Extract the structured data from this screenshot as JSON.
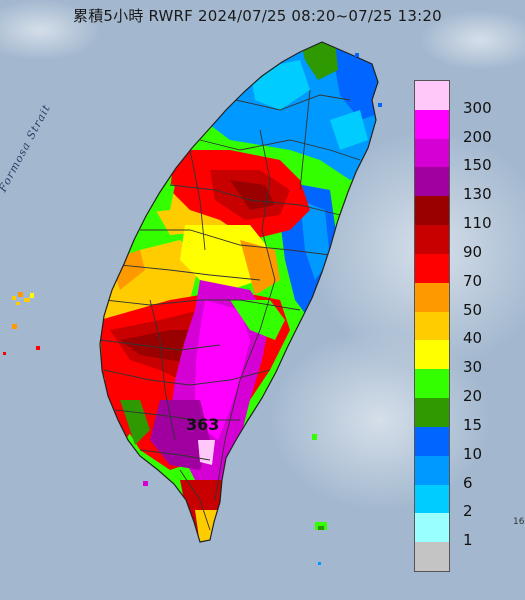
{
  "title": "累積5小時 RWRF 2024/07/25 08:20~07/25 13:20",
  "sea_label": "Formosa Strait",
  "max_value_label": "363",
  "corner_mark": "16",
  "legend": {
    "colors": [
      "#ffc8f8",
      "#ff00ff",
      "#d400d4",
      "#a000a0",
      "#9a0000",
      "#c80000",
      "#ff0000",
      "#ff9900",
      "#ffcc00",
      "#ffff00",
      "#33ff00",
      "#2e9900",
      "#0066ff",
      "#0099ff",
      "#00ccff",
      "#99ffff",
      "#c4c4c4"
    ],
    "labels": [
      "300",
      "200",
      "150",
      "130",
      "110",
      "90",
      "70",
      "50",
      "40",
      "30",
      "20",
      "15",
      "10",
      "6",
      "2",
      "1"
    ]
  },
  "colors": {
    "ocean": "#9fb4cc",
    "cloud": "#ffffff"
  }
}
